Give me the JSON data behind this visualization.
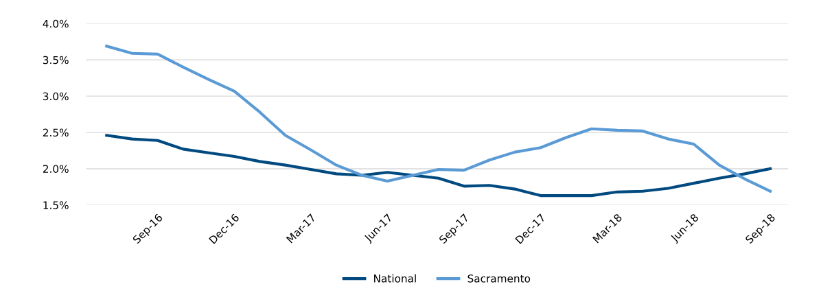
{
  "chart_data": {
    "type": "line",
    "categories": [
      null,
      null,
      "Sep-16",
      null,
      null,
      "Dec-16",
      null,
      null,
      "Mar-17",
      null,
      null,
      "Jun-17",
      null,
      null,
      "Sep-17",
      null,
      null,
      "Dec-17",
      null,
      null,
      "Mar-18",
      null,
      null,
      "Jun-18",
      null,
      null,
      "Sep-18"
    ],
    "series": [
      {
        "name": "National",
        "color": "#004a80",
        "values": [
          2.46,
          2.41,
          2.39,
          2.27,
          2.22,
          2.17,
          2.1,
          2.05,
          1.99,
          1.93,
          1.91,
          1.95,
          1.91,
          1.87,
          1.76,
          1.77,
          1.72,
          1.63,
          1.63,
          1.63,
          1.68,
          1.69,
          1.73,
          1.8,
          1.87,
          1.93,
          2.0
        ]
      },
      {
        "name": "Sacramento",
        "color": "#5b9bd5",
        "values": [
          3.69,
          3.59,
          3.58,
          3.4,
          3.23,
          3.07,
          2.78,
          2.46,
          2.26,
          2.05,
          1.91,
          1.83,
          1.91,
          1.99,
          1.98,
          2.12,
          2.23,
          2.29,
          2.43,
          2.55,
          2.53,
          2.52,
          2.41,
          2.34,
          2.05,
          1.86,
          1.69
        ]
      }
    ],
    "ylim": [
      1.5,
      4.0
    ],
    "yticks": [
      {
        "value": 1.5,
        "label": "1.5%"
      },
      {
        "value": 2.0,
        "label": "2.0%"
      },
      {
        "value": 2.5,
        "label": "2.5%"
      },
      {
        "value": 3.0,
        "label": "3.0%"
      },
      {
        "value": 3.5,
        "label": "3.5%"
      },
      {
        "value": 4.0,
        "label": "4.0%"
      }
    ],
    "grid": "y",
    "legend": "bottom",
    "marker": "none",
    "line_style": "solid"
  }
}
